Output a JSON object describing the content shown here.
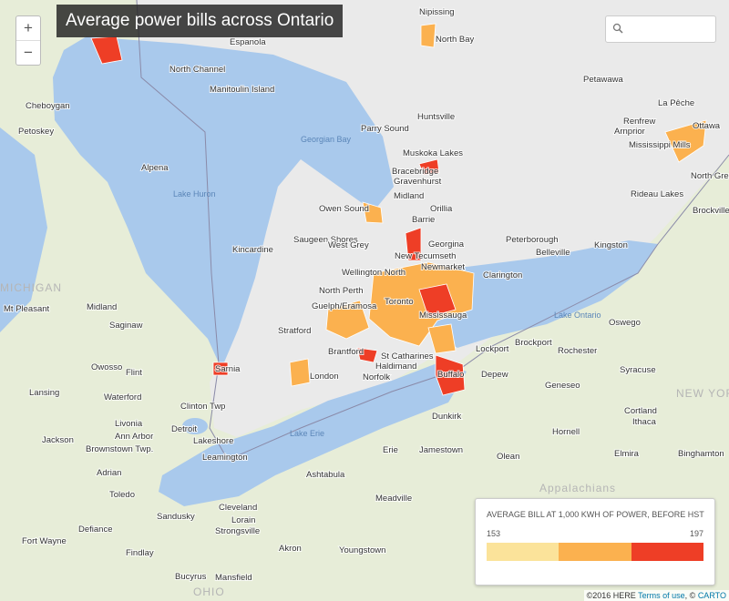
{
  "title": "Average power bills across Ontario",
  "zoom": [
    "+",
    "−"
  ],
  "legend": {
    "title": "AVERAGE BILL AT 1,000 KWH OF POWER, BEFORE HST",
    "min": 153,
    "max": 197,
    "colors": [
      "#fbe39a",
      "#fbb14f",
      "#ee3e26"
    ]
  },
  "attribution": [
    "©2016 HERE ",
    "Terms of use",
    ", © ",
    "CARTO"
  ],
  "labels": [
    "Nipissing",
    "North Bay",
    "Espanola",
    "North Channel",
    "Manitoulin Island",
    "Cheboygan",
    "Petoskey",
    "Alpena",
    "Lake Huron",
    "Georgian Bay",
    "Parry Sound",
    "Huntsville",
    "Muskoka Lakes",
    "Bracebridge",
    "Gravenhurst",
    "Midland",
    "Orillia",
    "Owen Sound",
    "Saugeen Shores",
    "West Grey",
    "Kincardine",
    "Barrie",
    "Georgina",
    "New Tecumseth",
    "Newmarket",
    "Peterborough",
    "Belleville",
    "Clarington",
    "Kingston",
    "Petawawa",
    "La Pêche",
    "Renfrew",
    "Arnprior",
    "Mississippi Mills",
    "Ottawa",
    "North Grenville",
    "Rideau Lakes",
    "Brockville",
    "Wellington North",
    "North Perth",
    "Guelph/Eramosa",
    "Toronto",
    "Mississauga",
    "Stratford",
    "Lake Ontario",
    "Oswego",
    "Rochester",
    "Brockport",
    "Lockport",
    "Syracuse",
    "Brantford",
    "St Catharines",
    "Haldimand",
    "Norfolk",
    "London",
    "Buffalo",
    "Depew",
    "Sarnia",
    "MICHIGAN",
    "Mt Pleasant",
    "Midland",
    "Saginaw",
    "Owosso",
    "Flint",
    "Lansing",
    "Waterford",
    "Clinton Twp",
    "Livonia",
    "Ann Arbor",
    "Detroit",
    "Jackson",
    "Brownstown Twp.",
    "Lakeshore",
    "Leamington",
    "Lake Erie",
    "Erie",
    "Jamestown",
    "Dunkirk",
    "Olean",
    "Geneseo",
    "Cortland",
    "Ithaca",
    "Hornell",
    "Elmira",
    "Binghamton",
    "NEW YORK",
    "Appalachians",
    "Adrian",
    "Toledo",
    "Sandusky",
    "Cleveland",
    "Lorain",
    "Strongsville",
    "Akron",
    "Fort Wayne",
    "Defiance",
    "Findlay",
    "Bucyrus",
    "Mansfield",
    "Youngstown",
    "Meadville",
    "Ashtabula",
    "OHIO"
  ]
}
